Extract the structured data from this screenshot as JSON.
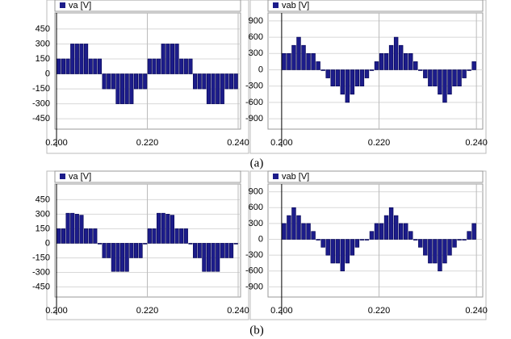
{
  "chart_data": [
    {
      "type": "bar",
      "series": [
        {
          "name": "va [V]",
          "color": "#1c1c8a",
          "values": [
            150,
            150,
            150,
            300,
            300,
            300,
            300,
            150,
            150,
            150,
            -150,
            -150,
            -150,
            -300,
            -300,
            -300,
            -300,
            -150,
            -150,
            -150,
            150,
            150,
            150,
            300,
            300,
            300,
            300,
            150,
            150,
            150,
            -150,
            -150,
            -150,
            -300,
            -300,
            -300,
            -300,
            -150,
            -150,
            -150
          ]
        }
      ],
      "x": [
        0.2005,
        0.2015,
        0.2025,
        0.2035,
        0.2045,
        0.2055,
        0.2065,
        0.2075,
        0.2085,
        0.2095,
        0.2105,
        0.2115,
        0.2125,
        0.2135,
        0.2145,
        0.2155,
        0.2165,
        0.2175,
        0.2185,
        0.2195,
        0.2205,
        0.2215,
        0.2225,
        0.2235,
        0.2245,
        0.2255,
        0.2265,
        0.2275,
        0.2285,
        0.2295,
        0.2305,
        0.2315,
        0.2325,
        0.2335,
        0.2345,
        0.2355,
        0.2365,
        0.2375,
        0.2385,
        0.2395
      ],
      "xlim": [
        0.19964,
        0.24053
      ],
      "xticks": [
        {
          "value": 0.2,
          "label": "0.200"
        },
        {
          "value": 0.22,
          "label": "0.220"
        },
        {
          "value": 0.24,
          "label": "0.240"
        }
      ],
      "ylim": [
        -554,
        611
      ],
      "yticks": [
        -450,
        -300,
        -150,
        0,
        150,
        300,
        450
      ],
      "grid": true
    },
    {
      "type": "bar",
      "series": [
        {
          "name": "vab [V]",
          "color": "#1c1c8a",
          "values": [
            300,
            300,
            450,
            600,
            450,
            300,
            300,
            150,
            0,
            -150,
            -300,
            -300,
            -450,
            -600,
            -450,
            -300,
            -300,
            -150,
            0,
            150,
            300,
            300,
            450,
            600,
            450,
            300,
            300,
            150,
            0,
            -150,
            -300,
            -300,
            -450,
            -600,
            -450,
            -300,
            -300,
            -150,
            0,
            150
          ]
        }
      ],
      "x": [
        0.2005,
        0.2015,
        0.2025,
        0.2035,
        0.2045,
        0.2055,
        0.2065,
        0.2075,
        0.2085,
        0.2095,
        0.2105,
        0.2115,
        0.2125,
        0.2135,
        0.2145,
        0.2155,
        0.2165,
        0.2175,
        0.2185,
        0.2195,
        0.2205,
        0.2215,
        0.2225,
        0.2235,
        0.2245,
        0.2255,
        0.2265,
        0.2275,
        0.2285,
        0.2295,
        0.2305,
        0.2315,
        0.2325,
        0.2335,
        0.2345,
        0.2355,
        0.2365,
        0.2375,
        0.2385,
        0.2395
      ],
      "xlim": [
        0.1972,
        0.2413
      ],
      "xticks": [
        {
          "value": 0.2,
          "label": "0.200"
        },
        {
          "value": 0.22,
          "label": "0.220"
        },
        {
          "value": 0.24,
          "label": "0.240"
        }
      ],
      "ylim": [
        -1092,
        1047
      ],
      "yticks": [
        -900,
        -600,
        -300,
        0,
        300,
        600,
        900
      ],
      "grid": true
    },
    {
      "type": "bar",
      "series": [
        {
          "name": "va [V]",
          "color": "#1c1c8a",
          "values": [
            150,
            150,
            310,
            310,
            300,
            290,
            150,
            150,
            150,
            0,
            -150,
            -150,
            -290,
            -290,
            -290,
            -290,
            -150,
            -150,
            -150,
            0,
            150,
            150,
            310,
            310,
            300,
            290,
            150,
            150,
            150,
            0,
            -150,
            -150,
            -290,
            -290,
            -290,
            -290,
            -150,
            -150,
            -150,
            0
          ]
        }
      ],
      "x": [
        0.2005,
        0.2015,
        0.2025,
        0.2035,
        0.2045,
        0.2055,
        0.2065,
        0.2075,
        0.2085,
        0.2095,
        0.2105,
        0.2115,
        0.2125,
        0.2135,
        0.2145,
        0.2155,
        0.2165,
        0.2175,
        0.2185,
        0.2195,
        0.2205,
        0.2215,
        0.2225,
        0.2235,
        0.2245,
        0.2255,
        0.2265,
        0.2275,
        0.2285,
        0.2295,
        0.2305,
        0.2315,
        0.2325,
        0.2335,
        0.2345,
        0.2355,
        0.2365,
        0.2375,
        0.2385,
        0.2395
      ],
      "xlim": [
        0.19964,
        0.24053
      ],
      "xticks": [
        {
          "value": 0.2,
          "label": "0.200"
        },
        {
          "value": 0.22,
          "label": "0.220"
        },
        {
          "value": 0.24,
          "label": "0.240"
        }
      ],
      "ylim": [
        -554,
        611
      ],
      "yticks": [
        -450,
        -300,
        -150,
        0,
        150,
        300,
        450
      ],
      "grid": true
    },
    {
      "type": "bar",
      "series": [
        {
          "name": "vab [V]",
          "color": "#1c1c8a",
          "values": [
            300,
            450,
            600,
            450,
            300,
            300,
            150,
            0,
            -150,
            -300,
            -450,
            -450,
            -600,
            -450,
            -300,
            -150,
            0,
            0,
            150,
            300,
            300,
            450,
            600,
            450,
            300,
            300,
            150,
            0,
            -150,
            -300,
            -450,
            -450,
            -600,
            -450,
            -300,
            -150,
            0,
            0,
            150,
            300
          ]
        }
      ],
      "x": [
        0.2005,
        0.2015,
        0.2025,
        0.2035,
        0.2045,
        0.2055,
        0.2065,
        0.2075,
        0.2085,
        0.2095,
        0.2105,
        0.2115,
        0.2125,
        0.2135,
        0.2145,
        0.2155,
        0.2165,
        0.2175,
        0.2185,
        0.2195,
        0.2205,
        0.2215,
        0.2225,
        0.2235,
        0.2245,
        0.2255,
        0.2265,
        0.2275,
        0.2285,
        0.2295,
        0.2305,
        0.2315,
        0.2325,
        0.2335,
        0.2345,
        0.2355,
        0.2365,
        0.2375,
        0.2385,
        0.2395
      ],
      "xlim": [
        0.1972,
        0.2413
      ],
      "xticks": [
        {
          "value": 0.2,
          "label": "0.200"
        },
        {
          "value": 0.22,
          "label": "0.220"
        },
        {
          "value": 0.24,
          "label": "0.240"
        }
      ],
      "ylim": [
        -1092,
        1047
      ],
      "yticks": [
        -900,
        -600,
        -300,
        0,
        300,
        600,
        900
      ],
      "grid": true
    }
  ],
  "captions": [
    "(a)",
    "(b)"
  ]
}
